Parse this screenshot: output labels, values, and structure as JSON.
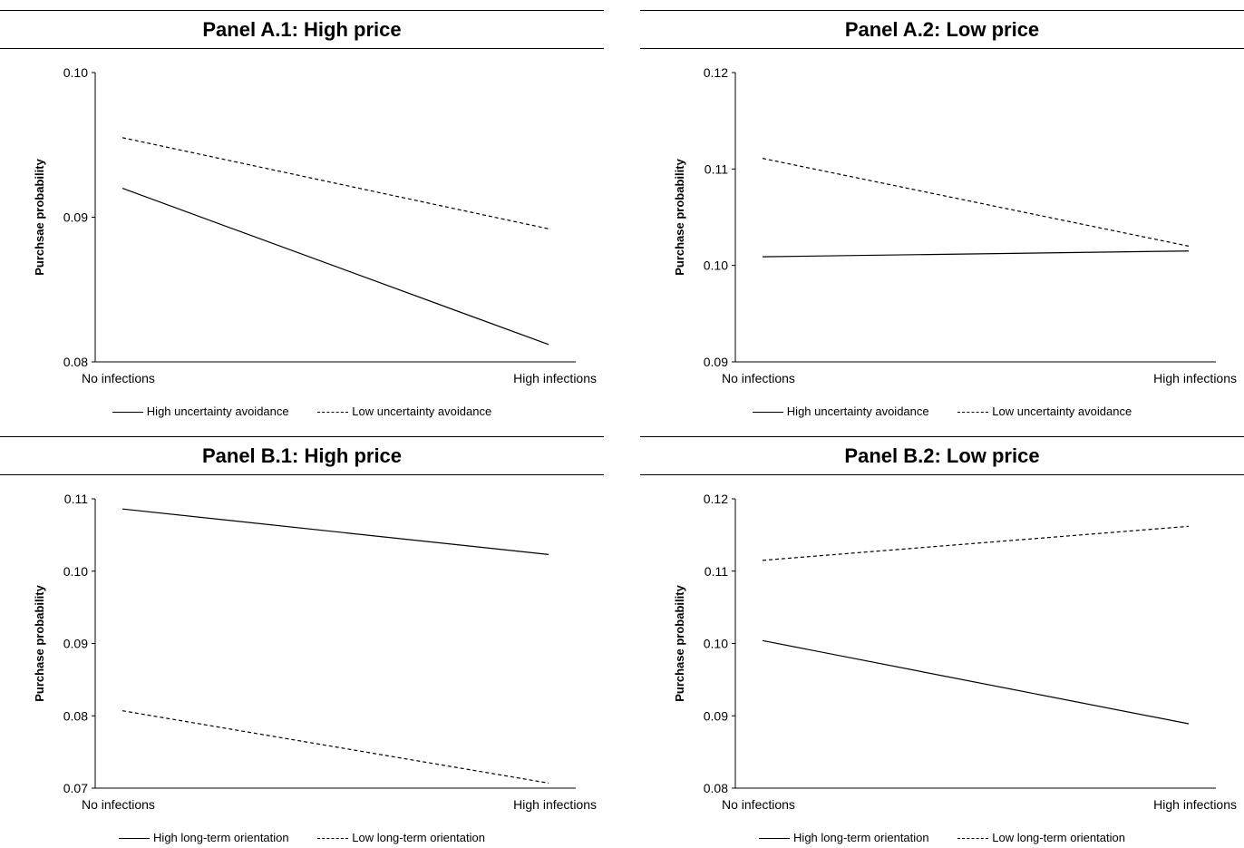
{
  "chart_data": [
    {
      "type": "line",
      "title": "Panel A.1: High price",
      "ylabel": "Purchsae probability",
      "categories": [
        "No infections",
        "High infections"
      ],
      "ylim": [
        0.08,
        0.1
      ],
      "yticks": [
        "0.08",
        "0.09",
        "0.10"
      ],
      "series": [
        {
          "name": "High uncertainty avoidance",
          "values": [
            0.092,
            0.0812
          ],
          "style": "solid"
        },
        {
          "name": "Low uncertainty avoidance",
          "values": [
            0.0955,
            0.0892
          ],
          "style": "dashed"
        }
      ]
    },
    {
      "type": "line",
      "title": "Panel A.2: Low price",
      "ylabel": "Purchase probability",
      "categories": [
        "No infections",
        "High infections"
      ],
      "ylim": [
        0.09,
        0.12
      ],
      "yticks": [
        "0.09",
        "0.10",
        "0.11",
        "0.12"
      ],
      "series": [
        {
          "name": "High uncertainty avoidance",
          "values": [
            0.1009,
            0.1015
          ],
          "style": "solid"
        },
        {
          "name": "Low uncertainty avoidance",
          "values": [
            0.1111,
            0.102
          ],
          "style": "dashed"
        }
      ]
    },
    {
      "type": "line",
      "title": "Panel B.1: High price",
      "ylabel": "Purchase probability",
      "categories": [
        "No infections",
        "High infections"
      ],
      "ylim": [
        0.07,
        0.11
      ],
      "yticks": [
        "0.07",
        "0.08",
        "0.09",
        "0.10",
        "0.11"
      ],
      "series": [
        {
          "name": "High long-term orientation",
          "values": [
            0.1086,
            0.1023
          ],
          "style": "solid"
        },
        {
          "name": "Low long-term orientation",
          "values": [
            0.0807,
            0.0707
          ],
          "style": "dashed"
        }
      ]
    },
    {
      "type": "line",
      "title": "Panel B.2: Low price",
      "ylabel": "Purchase probability",
      "categories": [
        "No infections",
        "High infections"
      ],
      "ylim": [
        0.08,
        0.12
      ],
      "yticks": [
        "0.08",
        "0.09",
        "0.10",
        "0.11",
        "0.12"
      ],
      "series": [
        {
          "name": "High long-term orientation",
          "values": [
            0.1004,
            0.0889
          ],
          "style": "solid"
        },
        {
          "name": "Low long-term orientation",
          "values": [
            0.1115,
            0.1162
          ],
          "style": "dashed"
        }
      ]
    }
  ]
}
